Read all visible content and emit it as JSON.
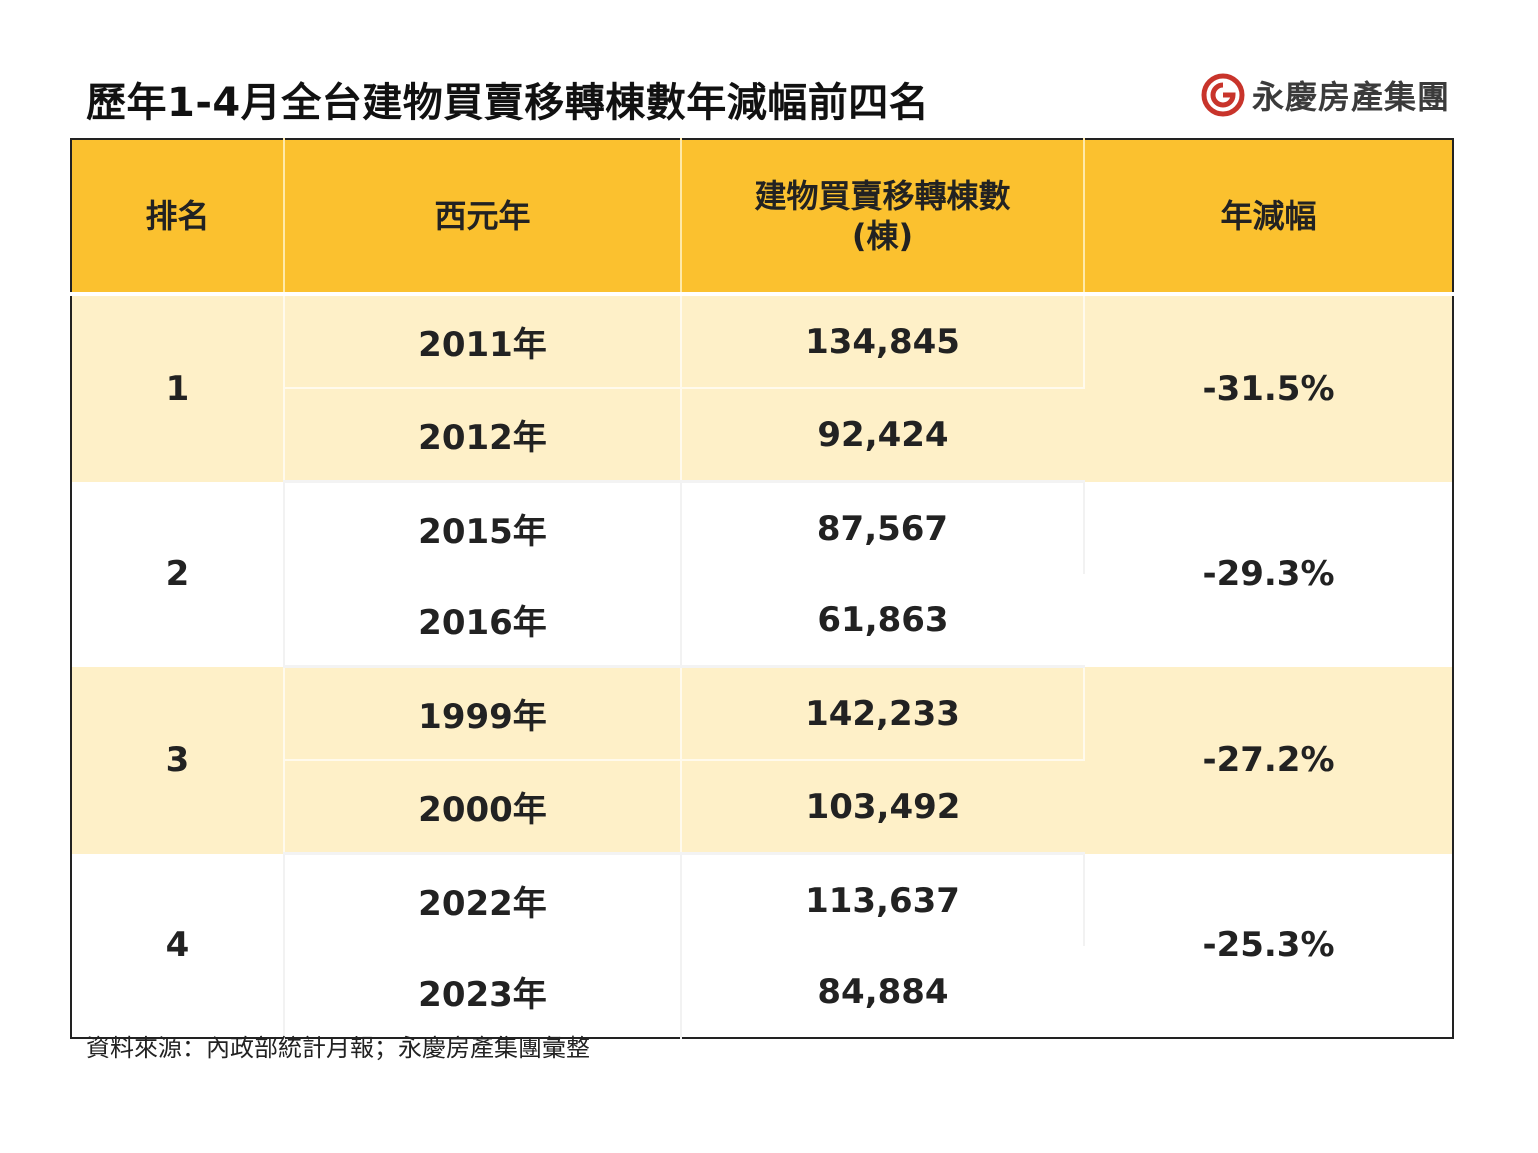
{
  "title": "歷年1-4月全台建物買賣移轉棟數年減幅前四名",
  "brand": {
    "name": "永慶房產集團",
    "icon": "yungching-logo-icon",
    "color": "#c8342b"
  },
  "table": {
    "headers": {
      "rank": "排名",
      "year": "西元年",
      "count_line1": "建物買賣移轉棟數",
      "count_line2": "(棟)",
      "decline": "年減幅"
    },
    "rows": [
      {
        "rank": "1",
        "decline": "-31.5%",
        "entries": [
          {
            "year": "2011年",
            "count": "134,845"
          },
          {
            "year": "2012年",
            "count": "92,424"
          }
        ]
      },
      {
        "rank": "2",
        "decline": "-29.3%",
        "entries": [
          {
            "year": "2015年",
            "count": "87,567"
          },
          {
            "year": "2016年",
            "count": "61,863"
          }
        ]
      },
      {
        "rank": "3",
        "decline": "-27.2%",
        "entries": [
          {
            "year": "1999年",
            "count": "142,233"
          },
          {
            "year": "2000年",
            "count": "103,492"
          }
        ]
      },
      {
        "rank": "4",
        "decline": "-25.3%",
        "highlight": true,
        "entries": [
          {
            "year": "2022年",
            "count": "113,637"
          },
          {
            "year": "2023年",
            "count": "84,884"
          }
        ]
      }
    ],
    "colors": {
      "header": "#fbc12f",
      "band": "#fef0c8",
      "highlight_text": "#c00000"
    }
  },
  "source": "資料來源：內政部統計月報；永慶房產集團彙整"
}
